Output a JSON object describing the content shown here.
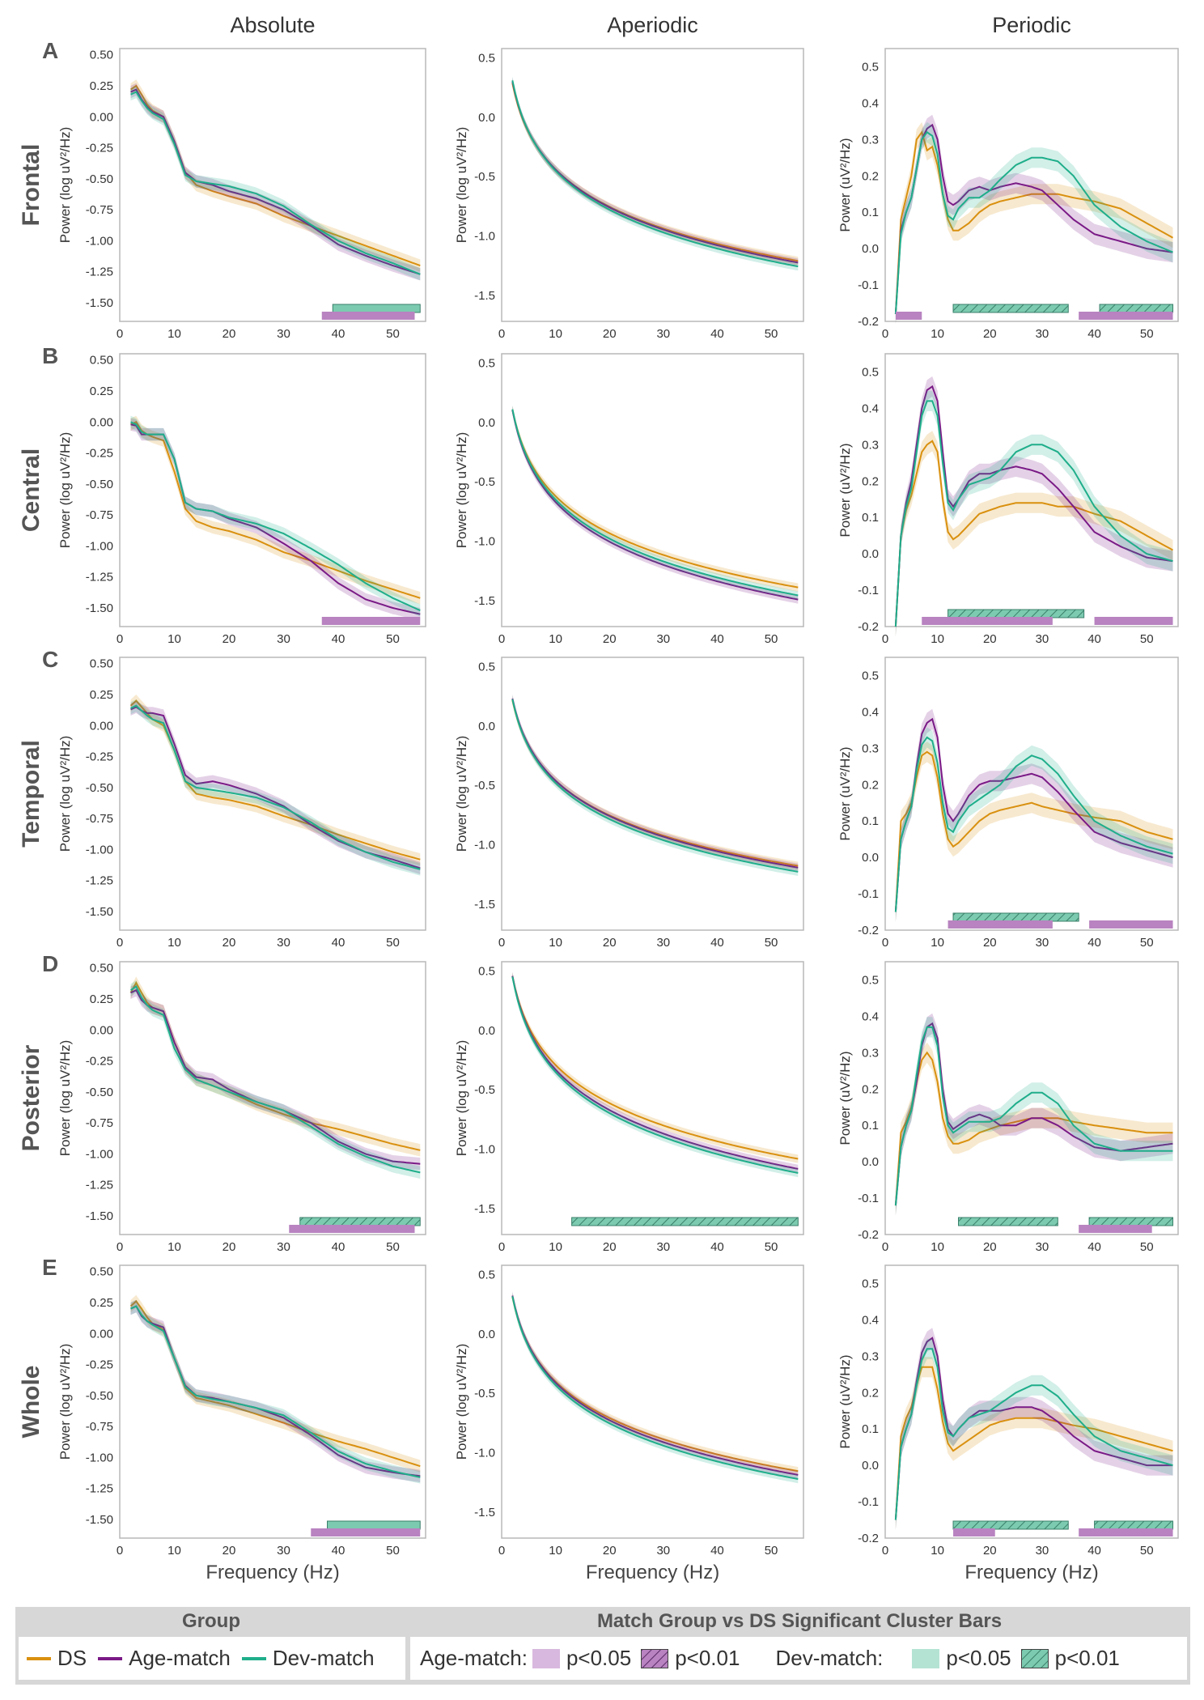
{
  "colors": {
    "DS": "#d9900f",
    "Age-match": "#7a1a86",
    "Dev-match": "#1fae8a",
    "age_bar": "#b883c0",
    "dev_bar": "#7ccbb0"
  },
  "chart_data": {
    "type": "line",
    "columns": [
      "Absolute",
      "Aperiodic",
      "Periodic"
    ],
    "rows": [
      {
        "letter": "A",
        "name": "Frontal"
      },
      {
        "letter": "B",
        "name": "Central"
      },
      {
        "letter": "C",
        "name": "Temporal"
      },
      {
        "letter": "D",
        "name": "Posterior"
      },
      {
        "letter": "E",
        "name": "Whole"
      }
    ],
    "xlabel": "Frequency (Hz)",
    "xlim": [
      0,
      56
    ],
    "xticks": [
      0,
      10,
      20,
      30,
      40,
      50
    ],
    "ylabels": {
      "abs": "Power (log uV²/Hz)",
      "ape": "Power (log uV²/Hz)",
      "per": "Power (uV²/Hz)"
    },
    "ylims": {
      "abs": [
        -1.65,
        0.55
      ],
      "ape": [
        -1.72,
        0.58
      ],
      "per": [
        -0.2,
        0.55
      ]
    },
    "yticks": {
      "abs": [
        "0.50",
        "0.25",
        "0.00",
        "-0.25",
        "-0.50",
        "-0.75",
        "-1.00",
        "-1.25",
        "-1.50"
      ],
      "ape": [
        "0.5",
        "0.0",
        "-0.5",
        "-1.0",
        "-1.5"
      ],
      "per": [
        "0.5",
        "0.4",
        "0.3",
        "0.2",
        "0.1",
        "0.0",
        "-0.1",
        "-0.2"
      ]
    },
    "series_names": [
      "DS",
      "Age-match",
      "Dev-match"
    ],
    "absolute": {
      "x": [
        2,
        3,
        4,
        5,
        6,
        8,
        10,
        12,
        14,
        17,
        20,
        25,
        30,
        35,
        40,
        45,
        50,
        55
      ],
      "Frontal": {
        "DS": [
          0.22,
          0.25,
          0.18,
          0.1,
          0.05,
          0.0,
          -0.2,
          -0.45,
          -0.55,
          -0.6,
          -0.64,
          -0.7,
          -0.8,
          -0.88,
          -0.96,
          -1.04,
          -1.12,
          -1.2
        ],
        "Age-match": [
          0.2,
          0.22,
          0.14,
          0.08,
          0.04,
          0.0,
          -0.2,
          -0.45,
          -0.52,
          -0.55,
          -0.6,
          -0.66,
          -0.75,
          -0.88,
          -1.03,
          -1.12,
          -1.2,
          -1.27
        ],
        "Dev-match": [
          0.18,
          0.2,
          0.13,
          0.07,
          0.03,
          -0.02,
          -0.22,
          -0.47,
          -0.52,
          -0.54,
          -0.56,
          -0.62,
          -0.72,
          -0.87,
          -1.0,
          -1.1,
          -1.18,
          -1.27
        ]
      },
      "Central": {
        "DS": [
          -0.02,
          0.0,
          -0.07,
          -0.1,
          -0.12,
          -0.15,
          -0.4,
          -0.7,
          -0.8,
          -0.85,
          -0.88,
          -0.95,
          -1.05,
          -1.12,
          -1.2,
          -1.28,
          -1.35,
          -1.42
        ],
        "Age-match": [
          -0.02,
          -0.03,
          -0.1,
          -0.1,
          -0.1,
          -0.1,
          -0.3,
          -0.65,
          -0.7,
          -0.72,
          -0.78,
          -0.85,
          -0.98,
          -1.12,
          -1.3,
          -1.43,
          -1.5,
          -1.55
        ],
        "Dev-match": [
          0.0,
          -0.02,
          -0.08,
          -0.1,
          -0.1,
          -0.1,
          -0.3,
          -0.65,
          -0.7,
          -0.72,
          -0.77,
          -0.82,
          -0.9,
          -1.02,
          -1.15,
          -1.3,
          -1.42,
          -1.52
        ]
      },
      "Temporal": {
        "DS": [
          0.16,
          0.2,
          0.15,
          0.1,
          0.05,
          0.0,
          -0.2,
          -0.45,
          -0.55,
          -0.58,
          -0.6,
          -0.65,
          -0.73,
          -0.8,
          -0.88,
          -0.95,
          -1.02,
          -1.08
        ],
        "Age-match": [
          0.13,
          0.15,
          0.12,
          0.1,
          0.1,
          0.08,
          -0.15,
          -0.4,
          -0.47,
          -0.45,
          -0.48,
          -0.55,
          -0.65,
          -0.8,
          -0.93,
          -1.02,
          -1.08,
          -1.15
        ],
        "Dev-match": [
          0.14,
          0.16,
          0.12,
          0.08,
          0.05,
          0.02,
          -0.2,
          -0.45,
          -0.5,
          -0.52,
          -0.54,
          -0.58,
          -0.66,
          -0.78,
          -0.92,
          -1.02,
          -1.1,
          -1.16
        ]
      },
      "Posterior": {
        "DS": [
          0.3,
          0.38,
          0.3,
          0.22,
          0.18,
          0.15,
          -0.1,
          -0.3,
          -0.4,
          -0.45,
          -0.5,
          -0.6,
          -0.68,
          -0.75,
          -0.8,
          -0.86,
          -0.92,
          -0.97
        ],
        "Age-match": [
          0.3,
          0.32,
          0.24,
          0.2,
          0.18,
          0.15,
          -0.1,
          -0.3,
          -0.38,
          -0.4,
          -0.48,
          -0.58,
          -0.65,
          -0.75,
          -0.9,
          -1.0,
          -1.06,
          -1.08
        ],
        "Dev-match": [
          0.32,
          0.35,
          0.26,
          0.2,
          0.16,
          0.12,
          -0.15,
          -0.32,
          -0.4,
          -0.45,
          -0.5,
          -0.58,
          -0.65,
          -0.78,
          -0.92,
          -1.02,
          -1.1,
          -1.15
        ]
      },
      "Whole": {
        "DS": [
          0.22,
          0.26,
          0.2,
          0.13,
          0.08,
          0.03,
          -0.2,
          -0.44,
          -0.52,
          -0.55,
          -0.58,
          -0.65,
          -0.72,
          -0.8,
          -0.87,
          -0.93,
          -1.0,
          -1.07
        ],
        "Age-match": [
          0.2,
          0.22,
          0.14,
          0.1,
          0.08,
          0.05,
          -0.2,
          -0.42,
          -0.5,
          -0.52,
          -0.55,
          -0.6,
          -0.68,
          -0.82,
          -0.98,
          -1.08,
          -1.12,
          -1.15
        ],
        "Dev-match": [
          0.2,
          0.22,
          0.15,
          0.1,
          0.07,
          0.02,
          -0.2,
          -0.43,
          -0.5,
          -0.53,
          -0.55,
          -0.6,
          -0.66,
          -0.8,
          -0.95,
          -1.05,
          -1.11,
          -1.16
        ]
      }
    },
    "aperiodic": {
      "params": {
        "Frontal": {
          "DS": [
            0.6,
            1.04
          ],
          "Age-match": [
            0.62,
            1.06
          ],
          "Dev-match": [
            0.64,
            1.09
          ]
        },
        "Central": {
          "DS": [
            0.42,
            1.04
          ],
          "Age-match": [
            0.44,
            1.11
          ],
          "Dev-match": [
            0.44,
            1.09
          ]
        },
        "Temporal": {
          "DS": [
            0.51,
            0.97
          ],
          "Age-match": [
            0.53,
            0.99
          ],
          "Dev-match": [
            0.53,
            1.01
          ]
        },
        "Posterior": {
          "DS": [
            0.78,
            1.07
          ],
          "Age-match": [
            0.8,
            1.13
          ],
          "Dev-match": [
            0.8,
            1.15
          ]
        },
        "Whole": {
          "DS": [
            0.62,
            1.02
          ],
          "Age-match": [
            0.64,
            1.05
          ],
          "Dev-match": [
            0.64,
            1.07
          ]
        }
      }
    },
    "periodic": {
      "x": [
        2,
        3,
        4,
        5,
        6,
        7,
        8,
        9,
        10,
        11,
        12,
        13,
        14,
        16,
        18,
        20,
        22,
        25,
        28,
        30,
        33,
        36,
        40,
        45,
        50,
        55
      ],
      "Frontal": {
        "DS": [
          -0.18,
          0.08,
          0.14,
          0.2,
          0.3,
          0.32,
          0.27,
          0.28,
          0.23,
          0.15,
          0.08,
          0.05,
          0.05,
          0.07,
          0.1,
          0.12,
          0.13,
          0.14,
          0.15,
          0.15,
          0.15,
          0.14,
          0.13,
          0.11,
          0.07,
          0.03
        ],
        "Age-match": [
          -0.18,
          0.05,
          0.1,
          0.14,
          0.22,
          0.3,
          0.33,
          0.34,
          0.3,
          0.2,
          0.13,
          0.12,
          0.13,
          0.16,
          0.17,
          0.16,
          0.17,
          0.18,
          0.17,
          0.16,
          0.12,
          0.08,
          0.04,
          0.02,
          0.0,
          -0.01
        ],
        "Dev-match": [
          -0.18,
          0.04,
          0.1,
          0.14,
          0.22,
          0.3,
          0.32,
          0.31,
          0.26,
          0.15,
          0.09,
          0.08,
          0.11,
          0.14,
          0.14,
          0.16,
          0.19,
          0.23,
          0.25,
          0.25,
          0.24,
          0.2,
          0.12,
          0.06,
          0.02,
          -0.01
        ]
      },
      "Central": {
        "DS": [
          -0.2,
          0.05,
          0.12,
          0.16,
          0.22,
          0.28,
          0.3,
          0.31,
          0.28,
          0.15,
          0.06,
          0.04,
          0.05,
          0.08,
          0.11,
          0.12,
          0.13,
          0.14,
          0.14,
          0.14,
          0.13,
          0.13,
          0.11,
          0.09,
          0.05,
          0.01
        ],
        "Age-match": [
          -0.2,
          0.05,
          0.14,
          0.2,
          0.3,
          0.4,
          0.45,
          0.46,
          0.42,
          0.28,
          0.15,
          0.13,
          0.15,
          0.2,
          0.22,
          0.22,
          0.23,
          0.24,
          0.23,
          0.22,
          0.18,
          0.13,
          0.06,
          0.02,
          -0.01,
          -0.02
        ],
        "Dev-match": [
          -0.2,
          0.05,
          0.13,
          0.18,
          0.28,
          0.38,
          0.42,
          0.42,
          0.38,
          0.25,
          0.14,
          0.12,
          0.15,
          0.19,
          0.2,
          0.21,
          0.23,
          0.28,
          0.3,
          0.3,
          0.28,
          0.23,
          0.13,
          0.05,
          0.0,
          -0.02
        ]
      },
      "Temporal": {
        "DS": [
          -0.15,
          0.1,
          0.12,
          0.15,
          0.22,
          0.28,
          0.29,
          0.28,
          0.22,
          0.12,
          0.05,
          0.03,
          0.04,
          0.07,
          0.1,
          0.12,
          0.13,
          0.14,
          0.15,
          0.14,
          0.13,
          0.12,
          0.11,
          0.1,
          0.07,
          0.05
        ],
        "Age-match": [
          -0.15,
          0.05,
          0.1,
          0.14,
          0.25,
          0.34,
          0.37,
          0.38,
          0.33,
          0.2,
          0.12,
          0.1,
          0.12,
          0.17,
          0.2,
          0.21,
          0.21,
          0.22,
          0.23,
          0.22,
          0.18,
          0.13,
          0.07,
          0.04,
          0.02,
          0.0
        ],
        "Dev-match": [
          -0.15,
          0.05,
          0.1,
          0.14,
          0.24,
          0.31,
          0.33,
          0.32,
          0.26,
          0.15,
          0.08,
          0.07,
          0.1,
          0.14,
          0.16,
          0.18,
          0.2,
          0.25,
          0.28,
          0.27,
          0.23,
          0.17,
          0.1,
          0.06,
          0.03,
          0.01
        ]
      },
      "Posterior": {
        "DS": [
          -0.12,
          0.08,
          0.11,
          0.15,
          0.22,
          0.28,
          0.3,
          0.28,
          0.22,
          0.12,
          0.07,
          0.05,
          0.05,
          0.06,
          0.08,
          0.09,
          0.1,
          0.11,
          0.12,
          0.12,
          0.12,
          0.11,
          0.1,
          0.09,
          0.08,
          0.08
        ],
        "Age-match": [
          -0.12,
          0.04,
          0.1,
          0.14,
          0.22,
          0.32,
          0.37,
          0.38,
          0.34,
          0.2,
          0.11,
          0.09,
          0.1,
          0.12,
          0.13,
          0.12,
          0.1,
          0.1,
          0.12,
          0.12,
          0.1,
          0.07,
          0.04,
          0.03,
          0.04,
          0.05
        ],
        "Dev-match": [
          -0.12,
          0.04,
          0.1,
          0.14,
          0.24,
          0.33,
          0.37,
          0.37,
          0.32,
          0.18,
          0.1,
          0.08,
          0.09,
          0.11,
          0.11,
          0.11,
          0.12,
          0.16,
          0.19,
          0.19,
          0.16,
          0.1,
          0.05,
          0.03,
          0.03,
          0.03
        ]
      },
      "Whole": {
        "DS": [
          -0.15,
          0.08,
          0.13,
          0.16,
          0.22,
          0.27,
          0.27,
          0.27,
          0.21,
          0.12,
          0.06,
          0.04,
          0.05,
          0.07,
          0.09,
          0.11,
          0.12,
          0.13,
          0.13,
          0.13,
          0.12,
          0.11,
          0.1,
          0.08,
          0.06,
          0.04
        ],
        "Age-match": [
          -0.15,
          0.05,
          0.1,
          0.14,
          0.23,
          0.31,
          0.34,
          0.35,
          0.3,
          0.18,
          0.1,
          0.08,
          0.1,
          0.13,
          0.15,
          0.15,
          0.15,
          0.16,
          0.16,
          0.15,
          0.12,
          0.08,
          0.04,
          0.02,
          0.0,
          0.0
        ],
        "Dev-match": [
          -0.15,
          0.05,
          0.1,
          0.14,
          0.22,
          0.29,
          0.32,
          0.32,
          0.27,
          0.15,
          0.09,
          0.08,
          0.1,
          0.13,
          0.14,
          0.15,
          0.17,
          0.2,
          0.22,
          0.22,
          0.19,
          0.14,
          0.08,
          0.04,
          0.02,
          0.0
        ]
      }
    },
    "cluster_bars": [
      {
        "col": "abs",
        "row": "Frontal",
        "group": "Dev-match",
        "p": "<0.05",
        "start": 39,
        "end": 55
      },
      {
        "col": "abs",
        "row": "Frontal",
        "group": "Age-match",
        "p": "<0.05",
        "start": 37,
        "end": 54
      },
      {
        "col": "abs",
        "row": "Central",
        "group": "Age-match",
        "p": "<0.05",
        "start": 37,
        "end": 55
      },
      {
        "col": "abs",
        "row": "Posterior",
        "group": "Dev-match",
        "p": "<0.01",
        "start": 33,
        "end": 55
      },
      {
        "col": "abs",
        "row": "Posterior",
        "group": "Age-match",
        "p": "<0.05",
        "start": 31,
        "end": 54
      },
      {
        "col": "abs",
        "row": "Whole",
        "group": "Dev-match",
        "p": "<0.05",
        "start": 38,
        "end": 55
      },
      {
        "col": "abs",
        "row": "Whole",
        "group": "Age-match",
        "p": "<0.05",
        "start": 35,
        "end": 55
      },
      {
        "col": "ape",
        "row": "Posterior",
        "group": "Dev-match",
        "p": "<0.01",
        "start": 13,
        "end": 55
      },
      {
        "col": "per",
        "row": "Frontal",
        "group": "Dev-match",
        "p": "<0.01",
        "start": 13,
        "end": 35
      },
      {
        "col": "per",
        "row": "Frontal",
        "group": "Dev-match",
        "p": "<0.01",
        "start": 41,
        "end": 55
      },
      {
        "col": "per",
        "row": "Frontal",
        "group": "Age-match",
        "p": "<0.05",
        "start": 2,
        "end": 7
      },
      {
        "col": "per",
        "row": "Frontal",
        "group": "Age-match",
        "p": "<0.05",
        "start": 37,
        "end": 55
      },
      {
        "col": "per",
        "row": "Central",
        "group": "Dev-match",
        "p": "<0.01",
        "start": 12,
        "end": 38
      },
      {
        "col": "per",
        "row": "Central",
        "group": "Age-match",
        "p": "<0.05",
        "start": 7,
        "end": 32
      },
      {
        "col": "per",
        "row": "Central",
        "group": "Age-match",
        "p": "<0.05",
        "start": 40,
        "end": 55
      },
      {
        "col": "per",
        "row": "Temporal",
        "group": "Dev-match",
        "p": "<0.01",
        "start": 13,
        "end": 37
      },
      {
        "col": "per",
        "row": "Temporal",
        "group": "Age-match",
        "p": "<0.05",
        "start": 12,
        "end": 32
      },
      {
        "col": "per",
        "row": "Temporal",
        "group": "Age-match",
        "p": "<0.05",
        "start": 39,
        "end": 55
      },
      {
        "col": "per",
        "row": "Posterior",
        "group": "Dev-match",
        "p": "<0.01",
        "start": 14,
        "end": 33
      },
      {
        "col": "per",
        "row": "Posterior",
        "group": "Dev-match",
        "p": "<0.01",
        "start": 39,
        "end": 55
      },
      {
        "col": "per",
        "row": "Posterior",
        "group": "Age-match",
        "p": "<0.05",
        "start": 37,
        "end": 51
      },
      {
        "col": "per",
        "row": "Whole",
        "group": "Dev-match",
        "p": "<0.01",
        "start": 13,
        "end": 35
      },
      {
        "col": "per",
        "row": "Whole",
        "group": "Dev-match",
        "p": "<0.01",
        "start": 40,
        "end": 55
      },
      {
        "col": "per",
        "row": "Whole",
        "group": "Age-match",
        "p": "<0.05",
        "start": 13,
        "end": 21
      },
      {
        "col": "per",
        "row": "Whole",
        "group": "Age-match",
        "p": "<0.05",
        "start": 37,
        "end": 55
      }
    ]
  },
  "legend": {
    "group_title": "Group",
    "group_items": [
      "DS",
      "Age-match",
      "Dev-match"
    ],
    "cluster_title": "Match Group vs DS Significant Cluster Bars",
    "age_label": "Age-match:",
    "dev_label": "Dev-match:",
    "p05": "p<0.05",
    "p01": "p<0.01"
  }
}
